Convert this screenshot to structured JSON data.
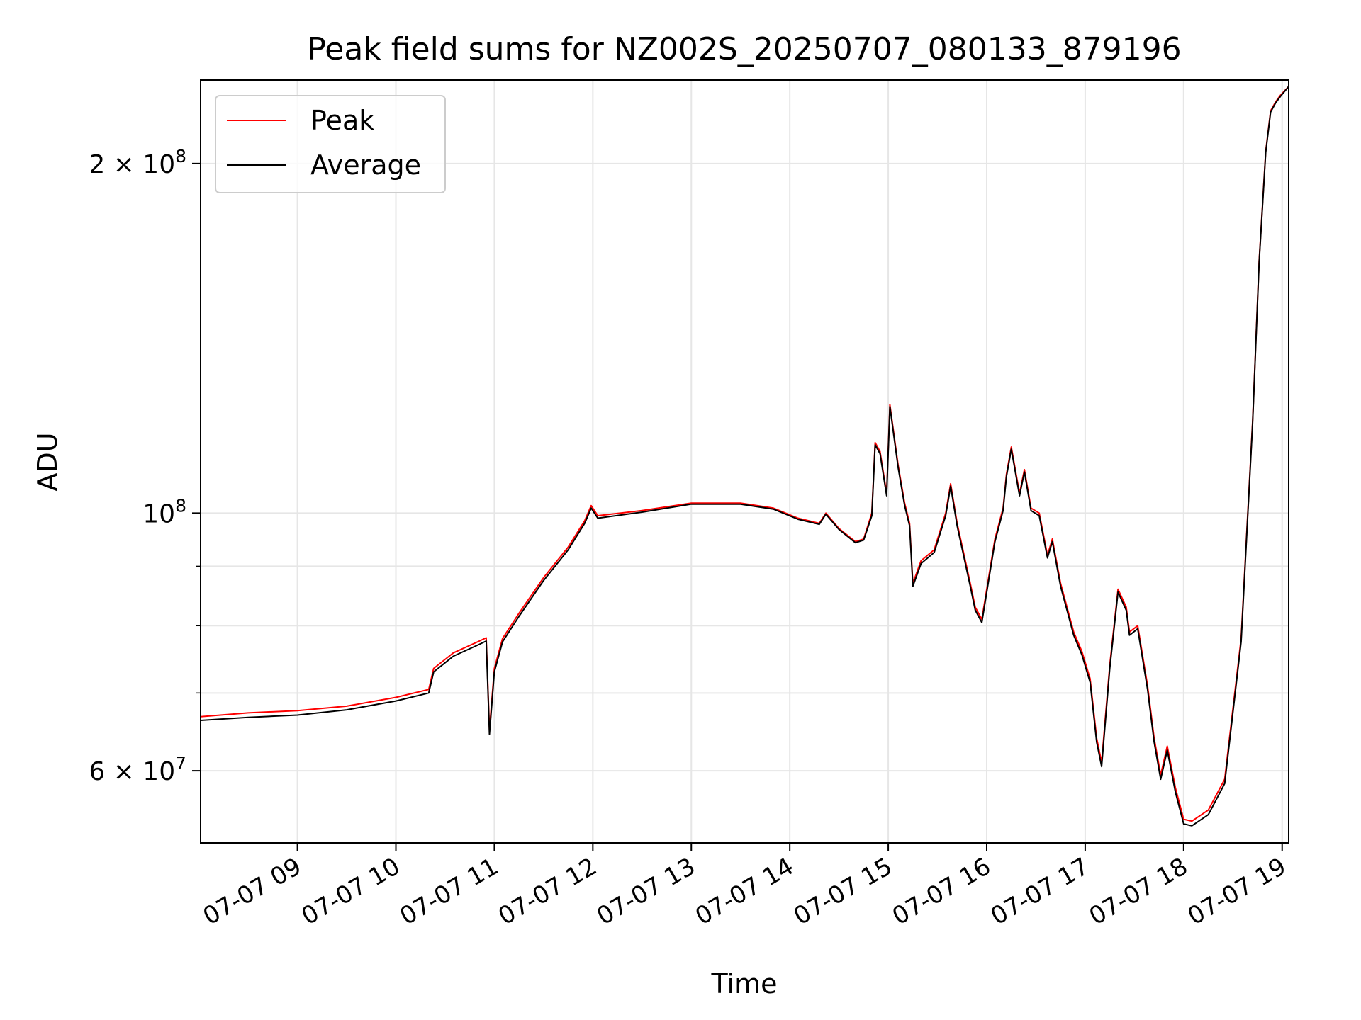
{
  "chart_data": {
    "type": "line",
    "title": "Peak field sums for NZ002S_20250707_080133_879196",
    "xlabel": "Time",
    "ylabel": "ADU",
    "y_scale": "log",
    "ylim": [
      52000000,
      236000000
    ],
    "xlim": [
      "2025-07-07 08:01",
      "2025-07-07 19:04"
    ],
    "grid": true,
    "legend_position": "top-left",
    "x_ticks": [
      {
        "t": "2025-07-07 09:00",
        "label": "07-07 09"
      },
      {
        "t": "2025-07-07 10:00",
        "label": "07-07 10"
      },
      {
        "t": "2025-07-07 11:00",
        "label": "07-07 11"
      },
      {
        "t": "2025-07-07 12:00",
        "label": "07-07 12"
      },
      {
        "t": "2025-07-07 13:00",
        "label": "07-07 13"
      },
      {
        "t": "2025-07-07 14:00",
        "label": "07-07 14"
      },
      {
        "t": "2025-07-07 15:00",
        "label": "07-07 15"
      },
      {
        "t": "2025-07-07 16:00",
        "label": "07-07 16"
      },
      {
        "t": "2025-07-07 17:00",
        "label": "07-07 17"
      },
      {
        "t": "2025-07-07 18:00",
        "label": "07-07 18"
      },
      {
        "t": "2025-07-07 19:00",
        "label": "07-07 19"
      }
    ],
    "y_major_ticks": [
      {
        "v": 60000000,
        "base": "6 × 10",
        "exp": "7"
      },
      {
        "v": 100000000,
        "base": "10",
        "exp": "8"
      },
      {
        "v": 200000000,
        "base": "2 × 10",
        "exp": "8"
      }
    ],
    "y_minor_ticks": [
      70000000,
      80000000,
      90000000
    ],
    "series": [
      {
        "name": "Peak",
        "color": "#ff0000",
        "x": [
          "2025-07-07 08:01",
          "2025-07-07 08:30",
          "2025-07-07 09:00",
          "2025-07-07 09:30",
          "2025-07-07 10:00",
          "2025-07-07 10:20",
          "2025-07-07 10:23",
          "2025-07-07 10:35",
          "2025-07-07 10:50",
          "2025-07-07 10:55",
          "2025-07-07 10:57",
          "2025-07-07 11:00",
          "2025-07-07 11:05",
          "2025-07-07 11:15",
          "2025-07-07 11:30",
          "2025-07-07 11:45",
          "2025-07-07 11:55",
          "2025-07-07 11:59",
          "2025-07-07 12:03",
          "2025-07-07 12:30",
          "2025-07-07 13:00",
          "2025-07-07 13:30",
          "2025-07-07 13:50",
          "2025-07-07 14:05",
          "2025-07-07 14:18",
          "2025-07-07 14:22",
          "2025-07-07 14:30",
          "2025-07-07 14:40",
          "2025-07-07 14:45",
          "2025-07-07 14:50",
          "2025-07-07 14:52",
          "2025-07-07 14:55",
          "2025-07-07 14:59",
          "2025-07-07 15:01",
          "2025-07-07 15:06",
          "2025-07-07 15:10",
          "2025-07-07 15:13",
          "2025-07-07 15:15",
          "2025-07-07 15:20",
          "2025-07-07 15:28",
          "2025-07-07 15:35",
          "2025-07-07 15:38",
          "2025-07-07 15:42",
          "2025-07-07 15:50",
          "2025-07-07 15:53",
          "2025-07-07 15:57",
          "2025-07-07 16:05",
          "2025-07-07 16:10",
          "2025-07-07 16:12",
          "2025-07-07 16:15",
          "2025-07-07 16:20",
          "2025-07-07 16:23",
          "2025-07-07 16:27",
          "2025-07-07 16:32",
          "2025-07-07 16:37",
          "2025-07-07 16:40",
          "2025-07-07 16:45",
          "2025-07-07 16:53",
          "2025-07-07 16:58",
          "2025-07-07 17:03",
          "2025-07-07 17:07",
          "2025-07-07 17:10",
          "2025-07-07 17:15",
          "2025-07-07 17:20",
          "2025-07-07 17:25",
          "2025-07-07 17:27",
          "2025-07-07 17:32",
          "2025-07-07 17:38",
          "2025-07-07 17:42",
          "2025-07-07 17:46",
          "2025-07-07 17:50",
          "2025-07-07 17:55",
          "2025-07-07 18:00",
          "2025-07-07 18:05",
          "2025-07-07 18:15",
          "2025-07-07 18:25",
          "2025-07-07 18:35",
          "2025-07-07 18:42",
          "2025-07-07 18:46",
          "2025-07-07 18:50",
          "2025-07-07 18:53",
          "2025-07-07 18:56",
          "2025-07-07 18:59",
          "2025-07-07 19:04"
        ],
        "y": [
          66800000,
          67300000,
          67600000,
          68200000,
          69400000,
          70500000,
          73500000,
          75800000,
          77500000,
          78100000,
          65000000,
          73500000,
          78000000,
          82000000,
          88000000,
          93500000,
          98500000,
          101500000,
          99500000,
          100500000,
          102000000,
          102000000,
          101000000,
          99000000,
          98000000,
          100000000,
          97000000,
          94500000,
          95000000,
          100000000,
          115000000,
          113000000,
          104000000,
          124000000,
          110000000,
          102000000,
          98000000,
          87000000,
          91000000,
          93000000,
          100000000,
          106000000,
          98000000,
          87000000,
          83000000,
          81000000,
          95000000,
          101000000,
          108000000,
          114000000,
          104000000,
          109000000,
          101000000,
          100000000,
          92000000,
          95000000,
          87000000,
          79000000,
          76000000,
          72000000,
          64000000,
          61000000,
          74000000,
          86000000,
          83000000,
          79000000,
          80000000,
          71000000,
          64000000,
          59500000,
          63000000,
          58000000,
          54500000,
          54300000,
          55500000,
          59000000,
          78000000,
          120000000,
          165000000,
          205000000,
          222000000,
          226000000,
          229000000,
          233000000
        ]
      },
      {
        "name": "Average",
        "color": "#000000",
        "x": [
          "2025-07-07 08:01",
          "2025-07-07 08:30",
          "2025-07-07 09:00",
          "2025-07-07 09:30",
          "2025-07-07 10:00",
          "2025-07-07 10:20",
          "2025-07-07 10:23",
          "2025-07-07 10:35",
          "2025-07-07 10:50",
          "2025-07-07 10:55",
          "2025-07-07 10:57",
          "2025-07-07 11:00",
          "2025-07-07 11:05",
          "2025-07-07 11:15",
          "2025-07-07 11:30",
          "2025-07-07 11:45",
          "2025-07-07 11:55",
          "2025-07-07 11:59",
          "2025-07-07 12:03",
          "2025-07-07 12:30",
          "2025-07-07 13:00",
          "2025-07-07 13:30",
          "2025-07-07 13:50",
          "2025-07-07 14:05",
          "2025-07-07 14:18",
          "2025-07-07 14:22",
          "2025-07-07 14:30",
          "2025-07-07 14:40",
          "2025-07-07 14:45",
          "2025-07-07 14:50",
          "2025-07-07 14:52",
          "2025-07-07 14:55",
          "2025-07-07 14:59",
          "2025-07-07 15:01",
          "2025-07-07 15:06",
          "2025-07-07 15:10",
          "2025-07-07 15:13",
          "2025-07-07 15:15",
          "2025-07-07 15:20",
          "2025-07-07 15:28",
          "2025-07-07 15:35",
          "2025-07-07 15:38",
          "2025-07-07 15:42",
          "2025-07-07 15:50",
          "2025-07-07 15:53",
          "2025-07-07 15:57",
          "2025-07-07 16:05",
          "2025-07-07 16:10",
          "2025-07-07 16:12",
          "2025-07-07 16:15",
          "2025-07-07 16:20",
          "2025-07-07 16:23",
          "2025-07-07 16:27",
          "2025-07-07 16:32",
          "2025-07-07 16:37",
          "2025-07-07 16:40",
          "2025-07-07 16:45",
          "2025-07-07 16:53",
          "2025-07-07 16:58",
          "2025-07-07 17:03",
          "2025-07-07 17:07",
          "2025-07-07 17:10",
          "2025-07-07 17:15",
          "2025-07-07 17:20",
          "2025-07-07 17:25",
          "2025-07-07 17:27",
          "2025-07-07 17:32",
          "2025-07-07 17:38",
          "2025-07-07 17:42",
          "2025-07-07 17:46",
          "2025-07-07 17:50",
          "2025-07-07 17:55",
          "2025-07-07 18:00",
          "2025-07-07 18:05",
          "2025-07-07 18:15",
          "2025-07-07 18:25",
          "2025-07-07 18:35",
          "2025-07-07 18:42",
          "2025-07-07 18:46",
          "2025-07-07 18:50",
          "2025-07-07 18:53",
          "2025-07-07 18:56",
          "2025-07-07 18:59",
          "2025-07-07 19:04"
        ],
        "y": [
          66300000,
          66700000,
          67000000,
          67700000,
          68900000,
          70000000,
          73000000,
          75300000,
          77000000,
          77600000,
          64500000,
          73000000,
          77500000,
          81500000,
          87500000,
          93000000,
          98000000,
          101000000,
          99000000,
          100200000,
          101800000,
          101800000,
          100800000,
          98800000,
          97800000,
          99800000,
          96800000,
          94300000,
          94800000,
          99500000,
          114500000,
          112500000,
          103500000,
          123500000,
          109500000,
          101500000,
          97500000,
          86500000,
          90500000,
          92500000,
          99500000,
          105500000,
          97500000,
          86500000,
          82500000,
          80500000,
          94500000,
          100500000,
          107500000,
          113500000,
          103500000,
          108500000,
          100500000,
          99500000,
          91500000,
          94500000,
          86500000,
          78500000,
          75500000,
          71500000,
          63500000,
          60500000,
          73500000,
          85500000,
          82500000,
          78500000,
          79500000,
          70500000,
          63500000,
          59000000,
          62500000,
          57500000,
          54000000,
          53800000,
          55000000,
          58500000,
          77500000,
          119500000,
          164500000,
          204500000,
          221500000,
          225500000,
          228500000,
          233000000
        ]
      }
    ]
  }
}
